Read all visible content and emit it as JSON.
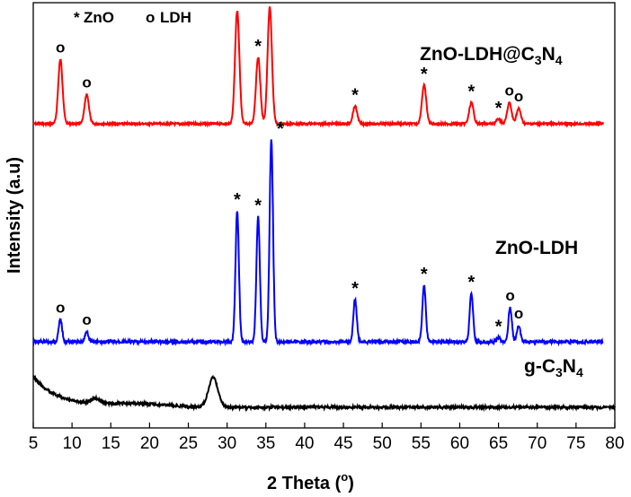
{
  "chart_data": {
    "type": "line",
    "xlabel": "2 Theta (",
    "xlabel_sup": "o",
    "xlabel_end": ")",
    "ylabel": "Intensity (a.u)",
    "xlim": [
      5,
      80
    ],
    "x_ticks": [
      "5",
      "10",
      "15",
      "20",
      "25",
      "30",
      "35",
      "40",
      "45",
      "50",
      "55",
      "60",
      "65",
      "70",
      "75",
      "80"
    ],
    "y_ticks_labeled": false,
    "grid": false,
    "legend": {
      "position": "top-left",
      "entries": [
        {
          "symbol": "*",
          "label": "ZnO"
        },
        {
          "symbol": "o",
          "label": "LDH"
        }
      ]
    },
    "series": [
      {
        "name": "ZnO-LDH@C3N4",
        "label_parts": {
          "main": "ZnO-LDH@C",
          "sub1": "3",
          "mid": "N",
          "sub2": "4"
        },
        "color": "#ff0000",
        "x_range": [
          5,
          78.5
        ],
        "baseline": 138,
        "peaks": [
          {
            "x": 8.5,
            "height": 0.55,
            "marker": "o"
          },
          {
            "x": 11.9,
            "height": 0.25,
            "marker": "o"
          },
          {
            "x": 31.3,
            "height": 0.97,
            "marker": "*"
          },
          {
            "x": 34.0,
            "height": 0.57,
            "marker": "*"
          },
          {
            "x": 35.5,
            "height": 1.0,
            "marker": "*"
          },
          {
            "x": 46.5,
            "height": 0.15,
            "marker": "*"
          },
          {
            "x": 55.4,
            "height": 0.33,
            "marker": "*"
          },
          {
            "x": 61.5,
            "height": 0.18,
            "marker": "*"
          },
          {
            "x": 65.0,
            "height": 0.04,
            "marker": "*"
          },
          {
            "x": 66.4,
            "height": 0.18,
            "marker": "o"
          },
          {
            "x": 67.6,
            "height": 0.13,
            "marker": "o"
          }
        ]
      },
      {
        "name": "ZnO-LDH",
        "label_parts": {
          "main": "ZnO-LDH",
          "sub1": "",
          "mid": "",
          "sub2": ""
        },
        "color": "#0000ff",
        "x_range": [
          5,
          78.5
        ],
        "baseline": 381,
        "peaks": [
          {
            "x": 8.5,
            "height": 0.11,
            "marker": "o"
          },
          {
            "x": 11.9,
            "height": 0.05,
            "marker": "o"
          },
          {
            "x": 31.3,
            "height": 0.65,
            "marker": "*"
          },
          {
            "x": 34.0,
            "height": 0.62,
            "marker": "*"
          },
          {
            "x": 35.7,
            "height": 1.0,
            "marker": "*"
          },
          {
            "x": 46.5,
            "height": 0.21,
            "marker": "*"
          },
          {
            "x": 55.4,
            "height": 0.28,
            "marker": "*"
          },
          {
            "x": 61.5,
            "height": 0.24,
            "marker": "*"
          },
          {
            "x": 65.0,
            "height": 0.02,
            "marker": "*"
          },
          {
            "x": 66.5,
            "height": 0.17,
            "marker": "o"
          },
          {
            "x": 67.6,
            "height": 0.08,
            "marker": "o"
          }
        ]
      },
      {
        "name": "g-C3N4",
        "label_parts": {
          "main": "g-C",
          "sub1": "3",
          "mid": "N",
          "sub2": "4"
        },
        "color": "#000000",
        "x_range": [
          5,
          80
        ],
        "baseline": 454,
        "peaks": [
          {
            "x": 13.1,
            "height": 0.1,
            "marker": ""
          },
          {
            "x": 28.2,
            "height": 0.6,
            "marker": ""
          }
        ]
      }
    ]
  }
}
